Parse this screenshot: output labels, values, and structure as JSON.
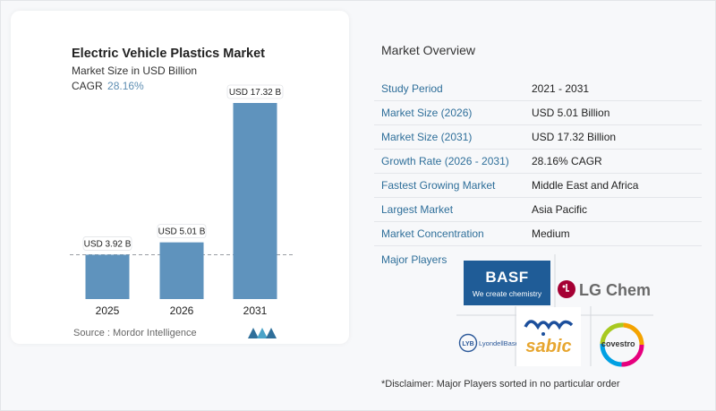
{
  "chart_card": {
    "title": "Electric Vehicle Plastics Market",
    "subtitle": "Market Size in USD Billion",
    "cagr_label": "CAGR",
    "cagr_value": "28.16%",
    "source": "Source :  Mordor Intelligence"
  },
  "chart_data": {
    "type": "bar",
    "title": "Electric Vehicle Plastics Market",
    "subtitle": "Market Size in USD Billion",
    "categories": [
      "2025",
      "2026",
      "2031"
    ],
    "values": [
      3.92,
      5.01,
      17.32
    ],
    "data_labels": [
      "USD 3.92 B",
      "USD 5.01 B",
      "USD 17.32 B"
    ],
    "ylim": [
      0,
      17.32
    ],
    "grid": false,
    "bar_color": "#5f93bd"
  },
  "overview": {
    "title": "Market Overview",
    "rows": [
      {
        "label": "Study Period",
        "value": "2021 - 2031"
      },
      {
        "label": "Market Size (2026)",
        "value": "USD 5.01 Billion"
      },
      {
        "label": "Market Size (2031)",
        "value": "USD 17.32 Billion"
      },
      {
        "label": "Growth Rate (2026 - 2031)",
        "value": "28.16% CAGR"
      },
      {
        "label": "Fastest Growing Market",
        "value": "Middle East and Africa"
      },
      {
        "label": "Largest Market",
        "value": "Asia Pacific"
      },
      {
        "label": "Market Concentration",
        "value": "Medium"
      }
    ]
  },
  "players": {
    "label": "Major Players",
    "logos": [
      {
        "name": "BASF",
        "text": "BASF",
        "tagline": "We create chemistry"
      },
      {
        "name": "LG Chem",
        "text": "LG Chem"
      },
      {
        "name": "LyondellBasell",
        "text": "LyondellBasell"
      },
      {
        "name": "SABIC",
        "text": "sabic"
      },
      {
        "name": "Covestro",
        "text": "covestro"
      }
    ]
  },
  "disclaimer": "*Disclaimer: Major Players sorted in no particular order",
  "colors": {
    "accent": "#2f6f9a",
    "bar": "#5f93bd",
    "basf": "#1f5c97",
    "lg": "#a50034",
    "sabic": "#1c4f9c"
  }
}
